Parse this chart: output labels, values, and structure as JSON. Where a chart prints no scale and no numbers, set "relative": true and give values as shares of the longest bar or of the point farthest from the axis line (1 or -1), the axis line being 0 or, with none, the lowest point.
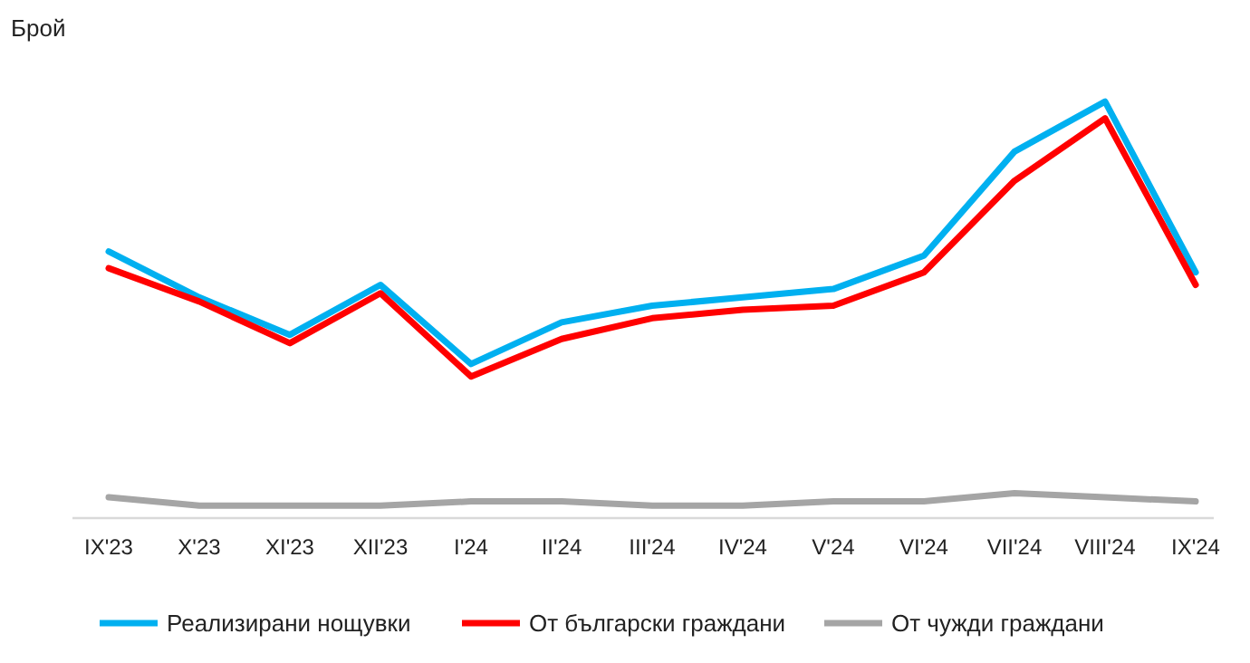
{
  "chart_data": {
    "type": "line",
    "relative": true,
    "ylabel": "Брой",
    "categories": [
      "IX'23",
      "X'23",
      "XI'23",
      "XII'23",
      "I'24",
      "II'24",
      "III'24",
      "IV'24",
      "V'24",
      "VI'24",
      "VII'24",
      "VIII'24",
      "IX'24"
    ],
    "series": [
      {
        "name": "Реализирани нощувки",
        "color": "#00b0f0",
        "values": [
          0.64,
          0.53,
          0.44,
          0.56,
          0.37,
          0.47,
          0.51,
          0.53,
          0.55,
          0.63,
          0.88,
          1,
          0.59
        ]
      },
      {
        "name": "От български граждани",
        "color": "#ff0000",
        "values": [
          0.6,
          0.52,
          0.42,
          0.54,
          0.34,
          0.43,
          0.48,
          0.5,
          0.51,
          0.59,
          0.81,
          0.96,
          0.56
        ]
      },
      {
        "name": "От чужди граждани",
        "color": "#a5a5a5",
        "values": [
          0.05,
          0.03,
          0.03,
          0.03,
          0.04,
          0.04,
          0.03,
          0.03,
          0.04,
          0.04,
          0.06,
          0.05,
          0.04
        ]
      }
    ],
    "legend": "bottom",
    "marker": "none",
    "line_style": "solid"
  }
}
